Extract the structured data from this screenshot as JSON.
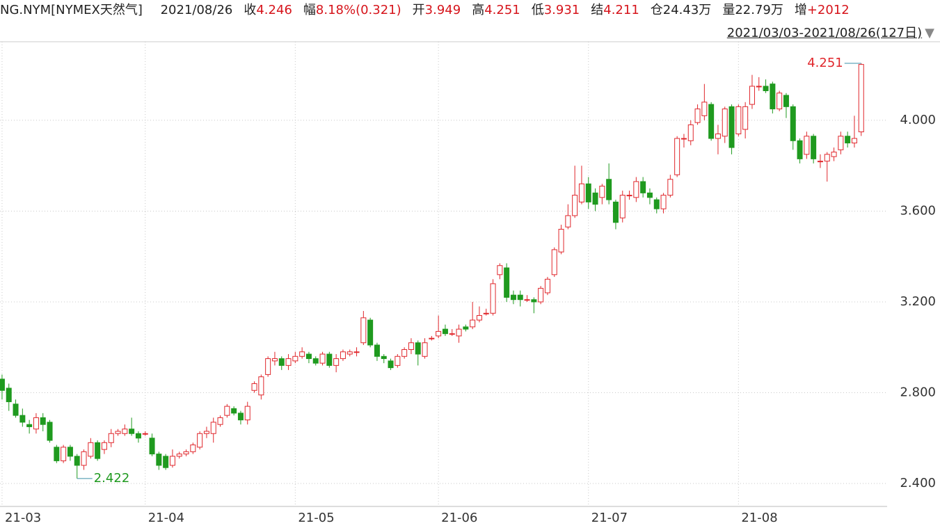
{
  "quote": {
    "symbol": "NG.NYM[NYMEX天然气]",
    "date": "2021/08/26",
    "fields": [
      {
        "label": "收",
        "value": "4.246"
      },
      {
        "label": "幅",
        "value": "8.18%(0.321)"
      },
      {
        "label": "开",
        "value": "3.949"
      },
      {
        "label": "高",
        "value": "4.251"
      },
      {
        "label": "低",
        "value": "3.931"
      },
      {
        "label": "结",
        "value": "4.211"
      },
      {
        "label": "仓",
        "value": "24.43万"
      },
      {
        "label": "量",
        "value": "22.79万"
      },
      {
        "label": "增",
        "value": "+2012"
      }
    ],
    "range": "2021/03/03-2021/08/26(127日)"
  },
  "chart_data": {
    "type": "candlestick",
    "up_color": "#e0262b",
    "down_color": "#1f9a1f",
    "open": [
      2.86,
      2.82,
      2.75,
      2.7,
      2.66,
      2.64,
      2.69,
      2.67,
      2.56,
      2.5,
      2.56,
      2.52,
      2.48,
      2.52,
      2.58,
      2.55,
      2.58,
      2.62,
      2.62,
      2.64,
      2.62,
      2.62,
      2.6,
      2.53,
      2.52,
      2.48,
      2.52,
      2.53,
      2.54,
      2.56,
      2.62,
      2.62,
      2.66,
      2.7,
      2.73,
      2.71,
      2.68,
      2.81,
      2.79,
      2.88,
      2.94,
      2.95,
      2.92,
      2.94,
      2.96,
      2.97,
      2.95,
      2.93,
      2.97,
      2.92,
      2.95,
      2.97,
      2.98,
      3.02,
      3.12,
      3.01,
      2.96,
      2.94,
      2.92,
      2.96,
      2.99,
      3.02,
      2.96,
      3.04,
      3.05,
      3.08,
      3.06,
      3.05,
      3.09,
      3.09,
      3.12,
      3.15,
      3.15,
      3.32,
      3.35,
      3.23,
      3.23,
      3.21,
      3.21,
      3.2,
      3.24,
      3.32,
      3.42,
      3.53,
      3.58,
      3.64,
      3.72,
      3.68,
      3.66,
      3.74,
      3.64,
      3.57,
      3.67,
      3.66,
      3.73,
      3.68,
      3.65,
      3.61,
      3.67,
      3.76,
      3.92,
      3.91,
      3.99,
      4.02,
      4.07,
      3.92,
      3.93,
      4.06,
      3.94,
      3.96,
      4.07,
      4.15,
      4.15,
      4.16,
      4.05,
      4.11,
      4.06,
      3.91,
      3.85,
      3.93,
      3.82,
      3.82,
      3.84,
      3.87,
      3.93,
      3.9,
      3.949
    ],
    "high": [
      2.88,
      2.84,
      2.77,
      2.73,
      2.68,
      2.71,
      2.71,
      2.68,
      2.57,
      2.57,
      2.57,
      2.53,
      2.55,
      2.6,
      2.59,
      2.59,
      2.64,
      2.64,
      2.66,
      2.69,
      2.63,
      2.63,
      2.62,
      2.54,
      2.53,
      2.55,
      2.54,
      2.55,
      2.58,
      2.63,
      2.65,
      2.69,
      2.7,
      2.75,
      2.74,
      2.72,
      2.76,
      2.85,
      2.88,
      2.96,
      2.98,
      2.96,
      2.97,
      2.98,
      3.0,
      2.98,
      2.96,
      2.98,
      2.98,
      2.97,
      2.99,
      2.99,
      3.0,
      3.16,
      3.13,
      3.02,
      2.97,
      2.95,
      2.97,
      3.0,
      3.04,
      3.03,
      3.04,
      3.05,
      3.14,
      3.1,
      3.08,
      3.1,
      3.1,
      3.2,
      3.18,
      3.17,
      3.3,
      3.37,
      3.37,
      3.25,
      3.25,
      3.23,
      3.22,
      3.27,
      3.31,
      3.44,
      3.54,
      3.63,
      3.8,
      3.8,
      3.75,
      3.7,
      3.72,
      3.81,
      3.65,
      3.69,
      3.69,
      3.75,
      3.75,
      3.7,
      3.66,
      3.68,
      3.76,
      3.93,
      3.94,
      4.0,
      4.07,
      4.16,
      4.08,
      3.98,
      4.06,
      4.07,
      4.07,
      4.08,
      4.2,
      4.19,
      4.18,
      4.17,
      4.13,
      4.12,
      4.07,
      3.92,
      3.95,
      3.94,
      3.85,
      3.86,
      3.88,
      3.95,
      3.95,
      4.02,
      4.251
    ],
    "low": [
      2.77,
      2.72,
      2.69,
      2.65,
      2.62,
      2.62,
      2.63,
      2.58,
      2.49,
      2.49,
      2.5,
      2.422,
      2.46,
      2.51,
      2.5,
      2.53,
      2.56,
      2.61,
      2.61,
      2.61,
      2.58,
      2.61,
      2.52,
      2.46,
      2.46,
      2.47,
      2.51,
      2.52,
      2.53,
      2.55,
      2.6,
      2.58,
      2.65,
      2.69,
      2.7,
      2.66,
      2.66,
      2.8,
      2.77,
      2.87,
      2.92,
      2.9,
      2.9,
      2.93,
      2.95,
      2.93,
      2.92,
      2.92,
      2.91,
      2.89,
      2.94,
      2.96,
      2.96,
      3.01,
      3.0,
      2.94,
      2.93,
      2.9,
      2.91,
      2.95,
      2.97,
      2.92,
      2.95,
      3.03,
      3.04,
      3.05,
      3.05,
      3.02,
      3.07,
      3.08,
      3.11,
      3.14,
      3.14,
      3.3,
      3.2,
      3.19,
      3.18,
      3.2,
      3.15,
      3.19,
      3.23,
      3.31,
      3.41,
      3.52,
      3.57,
      3.63,
      3.61,
      3.6,
      3.63,
      3.63,
      3.52,
      3.55,
      3.65,
      3.64,
      3.66,
      3.63,
      3.59,
      3.59,
      3.66,
      3.75,
      3.88,
      3.89,
      3.98,
      4.0,
      3.91,
      3.85,
      3.9,
      3.85,
      3.93,
      3.92,
      4.05,
      4.13,
      4.12,
      4.03,
      4.04,
      4.01,
      3.87,
      3.81,
      3.83,
      3.81,
      3.79,
      3.73,
      3.82,
      3.85,
      3.88,
      3.88,
      3.931
    ],
    "close": [
      2.81,
      2.76,
      2.7,
      2.67,
      2.65,
      2.69,
      2.66,
      2.59,
      2.5,
      2.56,
      2.52,
      2.48,
      2.54,
      2.58,
      2.51,
      2.58,
      2.62,
      2.63,
      2.64,
      2.62,
      2.6,
      2.62,
      2.53,
      2.48,
      2.47,
      2.52,
      2.53,
      2.54,
      2.57,
      2.62,
      2.63,
      2.67,
      2.69,
      2.74,
      2.71,
      2.68,
      2.74,
      2.84,
      2.87,
      2.95,
      2.95,
      2.92,
      2.95,
      2.96,
      2.98,
      2.95,
      2.93,
      2.97,
      2.92,
      2.95,
      2.98,
      2.98,
      2.98,
      3.13,
      3.01,
      2.96,
      2.95,
      2.91,
      2.96,
      2.99,
      3.02,
      2.97,
      3.02,
      3.04,
      3.07,
      3.06,
      3.06,
      3.08,
      3.08,
      3.12,
      3.14,
      3.15,
      3.28,
      3.36,
      3.22,
      3.21,
      3.21,
      3.21,
      3.2,
      3.26,
      3.3,
      3.43,
      3.52,
      3.58,
      3.67,
      3.72,
      3.64,
      3.63,
      3.71,
      3.65,
      3.55,
      3.67,
      3.67,
      3.73,
      3.68,
      3.66,
      3.61,
      3.67,
      3.74,
      3.92,
      3.92,
      3.98,
      4.05,
      4.08,
      3.92,
      3.94,
      4.05,
      3.88,
      4.06,
      4.06,
      4.15,
      4.15,
      4.13,
      4.05,
      4.12,
      4.06,
      3.91,
      3.83,
      3.93,
      3.83,
      3.82,
      3.85,
      3.86,
      3.93,
      3.9,
      3.92,
      4.246
    ],
    "xlim": [
      -0.3,
      129.8
    ],
    "xticks": [
      {
        "value": 0,
        "label": "21-03"
      },
      {
        "value": 21,
        "label": "21-04"
      },
      {
        "value": 43,
        "label": "21-05"
      },
      {
        "value": 64,
        "label": "21-06"
      },
      {
        "value": 86,
        "label": "21-07"
      },
      {
        "value": 108,
        "label": "21-08"
      }
    ],
    "ylim": [
      2.299,
      4.346
    ],
    "yticks": [
      {
        "value": 2.4,
        "label": "2.400"
      },
      {
        "value": 2.8,
        "label": "2.800"
      },
      {
        "value": 3.2,
        "label": "3.200"
      },
      {
        "value": 3.6,
        "label": "3.600"
      },
      {
        "value": 4,
        "label": "4.000"
      }
    ],
    "grid": true
  }
}
